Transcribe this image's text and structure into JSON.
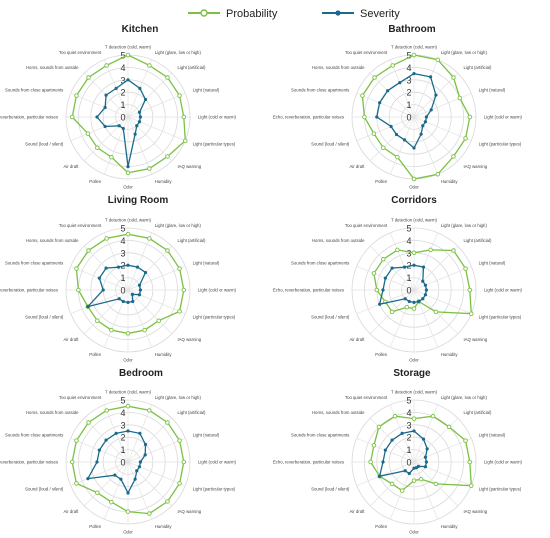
{
  "chart_data": {
    "type": "radar",
    "legend": {
      "position": "top-center",
      "series": [
        {
          "name": "Probability",
          "color": "#7ac143"
        },
        {
          "name": "Severity",
          "color": "#1b6a8c"
        }
      ]
    },
    "categories": [
      "T detection (cold, warm)",
      "Light (glare, low or high)",
      "Light (artificial)",
      "Light (natural)",
      "Light (cold or warm)",
      "Light (particular types)",
      "IAQ warning",
      "Humidity",
      "Odor",
      "Pollen",
      "Air draft",
      "Sound (loud / silent)",
      "Echo, reverberation, particular noises",
      "Sounds from close apartments",
      "Horns, sounds from outside",
      "Too quiet environment"
    ],
    "axis": {
      "min": 0,
      "max": 5,
      "ticks": [
        "0",
        "1",
        "2",
        "3",
        "4",
        "5"
      ]
    },
    "panels": [
      {
        "title": "Kitchen",
        "probability": [
          5,
          4.5,
          4.5,
          4.5,
          4.5,
          5,
          4.5,
          4.5,
          4.5,
          3.5,
          3.5,
          3.5,
          4.5,
          4.5,
          4.5,
          4.5
        ],
        "severity": [
          3,
          2.5,
          2,
          1,
          1,
          1,
          1,
          1.5,
          4,
          1,
          1,
          2,
          2.5,
          2,
          2.5,
          2.5
        ]
      },
      {
        "title": "Bathroom",
        "probability": [
          5,
          5,
          4.5,
          4,
          4.5,
          4.5,
          4.5,
          5,
          5,
          3.5,
          3.5,
          3.5,
          4,
          4.5,
          4.5,
          4.5
        ],
        "severity": [
          3.5,
          3.5,
          2.5,
          1.5,
          1,
          1,
          1,
          1.5,
          2.5,
          2,
          2,
          2,
          3,
          3,
          3,
          3
        ]
      },
      {
        "title": "Living Room",
        "probability": [
          4.5,
          4.5,
          4.5,
          4.5,
          4.5,
          4.5,
          3.5,
          3.5,
          3.5,
          3.5,
          3.5,
          3.5,
          4,
          4.5,
          4.5,
          4.5
        ],
        "severity": [
          2,
          2,
          2,
          1,
          1,
          1,
          0.5,
          1,
          1,
          1,
          1,
          3.5,
          2,
          2.5,
          2.5,
          2
        ]
      },
      {
        "title": "Corridors",
        "probability": [
          3,
          3.5,
          4.5,
          4.5,
          4.5,
          5,
          2.5,
          1,
          1.5,
          1.5,
          2.5,
          2.5,
          3,
          3.5,
          3.5,
          3.5
        ],
        "severity": [
          2,
          2,
          1,
          1,
          1,
          1,
          1,
          1,
          1,
          1,
          1,
          3,
          2.5,
          2.5,
          2.5,
          2
        ]
      },
      {
        "title": "Bedroom",
        "probability": [
          4.5,
          4.5,
          4.5,
          4.5,
          4.5,
          4.5,
          4.5,
          4.5,
          4,
          3.5,
          3.5,
          4.5,
          4.5,
          4.5,
          4.5,
          4.5
        ],
        "severity": [
          2.5,
          2.5,
          2,
          1.5,
          1,
          1,
          1,
          1.5,
          2.5,
          1.5,
          1.5,
          3.5,
          2.5,
          2.5,
          2.5,
          2.5
        ]
      },
      {
        "title": "Storage",
        "probability": [
          3.5,
          4,
          4,
          4.5,
          4.5,
          5,
          2.5,
          1.5,
          1.5,
          2.5,
          2.5,
          3,
          3.5,
          3.5,
          4,
          4
        ],
        "severity": [
          2.5,
          2,
          1.5,
          1,
          1,
          1,
          0.5,
          0.5,
          0.5,
          1,
          1,
          3,
          2.5,
          2.5,
          2.5,
          2.5
        ]
      }
    ]
  }
}
